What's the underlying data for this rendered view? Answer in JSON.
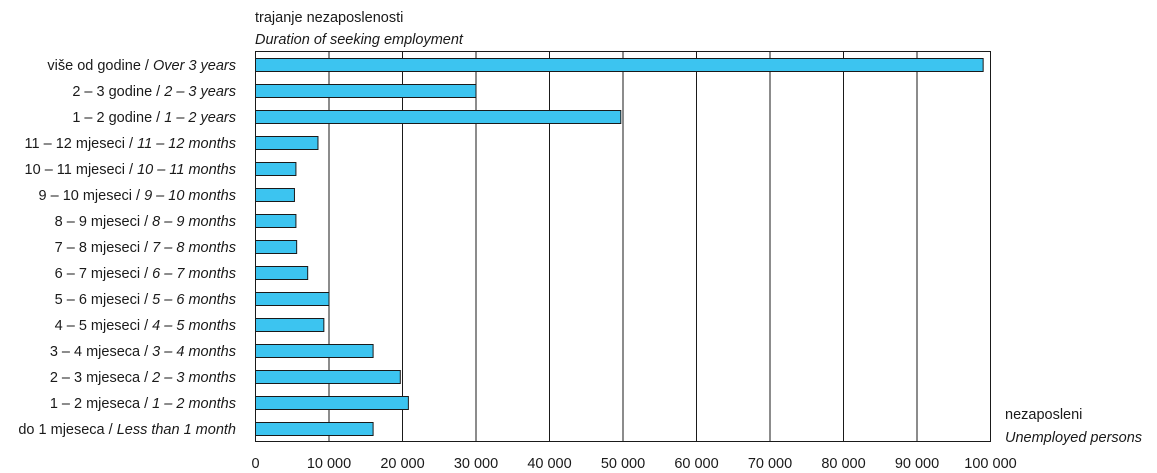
{
  "chart_data": {
    "type": "bar",
    "orientation": "horizontal",
    "title": "",
    "y_axis_title": {
      "line1": "trajanje nezaposlenosti",
      "line2": "Duration of seeking employment"
    },
    "x_axis_title": {
      "line1": "nezaposleni",
      "line2": "Unemployed persons"
    },
    "categories": [
      {
        "label": "više od godine / ",
        "label_en": "Over 3 years",
        "value": 99000
      },
      {
        "label": "2 – 3 godine / ",
        "label_en": "2 – 3 years",
        "value": 30000
      },
      {
        "label": "1 – 2 godine / ",
        "label_en": "1 – 2 years",
        "value": 49700
      },
      {
        "label": "11 – 12 mjeseci / ",
        "label_en": "11 – 12 months",
        "value": 8500
      },
      {
        "label": "10 – 11 mjeseci / ",
        "label_en": "10 – 11 months",
        "value": 5500
      },
      {
        "label": "9 – 10 mjeseci / ",
        "label_en": "9 – 10 months",
        "value": 5300
      },
      {
        "label": "8 – 9 mjeseci / ",
        "label_en": "8 – 9 months",
        "value": 5500
      },
      {
        "label": "7 – 8 mjeseci / ",
        "label_en": "7 – 8 months",
        "value": 5600
      },
      {
        "label": "6 – 7 mjeseci / ",
        "label_en": "6 – 7 months",
        "value": 7100
      },
      {
        "label": "5 – 6 mjeseci / ",
        "label_en": "5 – 6 months",
        "value": 10000
      },
      {
        "label": "4 – 5 mjeseci / ",
        "label_en": "4 – 5 months",
        "value": 9300
      },
      {
        "label": "3 – 4 mjeseca / ",
        "label_en": "3 – 4 months",
        "value": 16000
      },
      {
        "label": "2 – 3 mjeseca / ",
        "label_en": "2 – 3 months",
        "value": 19700
      },
      {
        "label": "1 – 2 mjeseca / ",
        "label_en": "1 – 2 months",
        "value": 20800
      },
      {
        "label": "do 1 mjeseca / ",
        "label_en": "Less than 1 month",
        "value": 16000
      }
    ],
    "xlim": [
      0,
      100000
    ],
    "x_ticks": [
      {
        "value": 0,
        "label": "0"
      },
      {
        "value": 10000,
        "label": "10 000"
      },
      {
        "value": 20000,
        "label": "20 000"
      },
      {
        "value": 30000,
        "label": "30 000"
      },
      {
        "value": 40000,
        "label": "40 000"
      },
      {
        "value": 50000,
        "label": "50 000"
      },
      {
        "value": 60000,
        "label": "60 000"
      },
      {
        "value": 70000,
        "label": "70 000"
      },
      {
        "value": 80000,
        "label": "80 000"
      },
      {
        "value": 90000,
        "label": "90 000"
      },
      {
        "value": 100000,
        "label": "100 000"
      }
    ],
    "grid": "vertical",
    "colors": {
      "bar_fill": "#3cc4f0",
      "bar_stroke": "#1a1a1a",
      "grid": "#1a1a1a"
    }
  }
}
